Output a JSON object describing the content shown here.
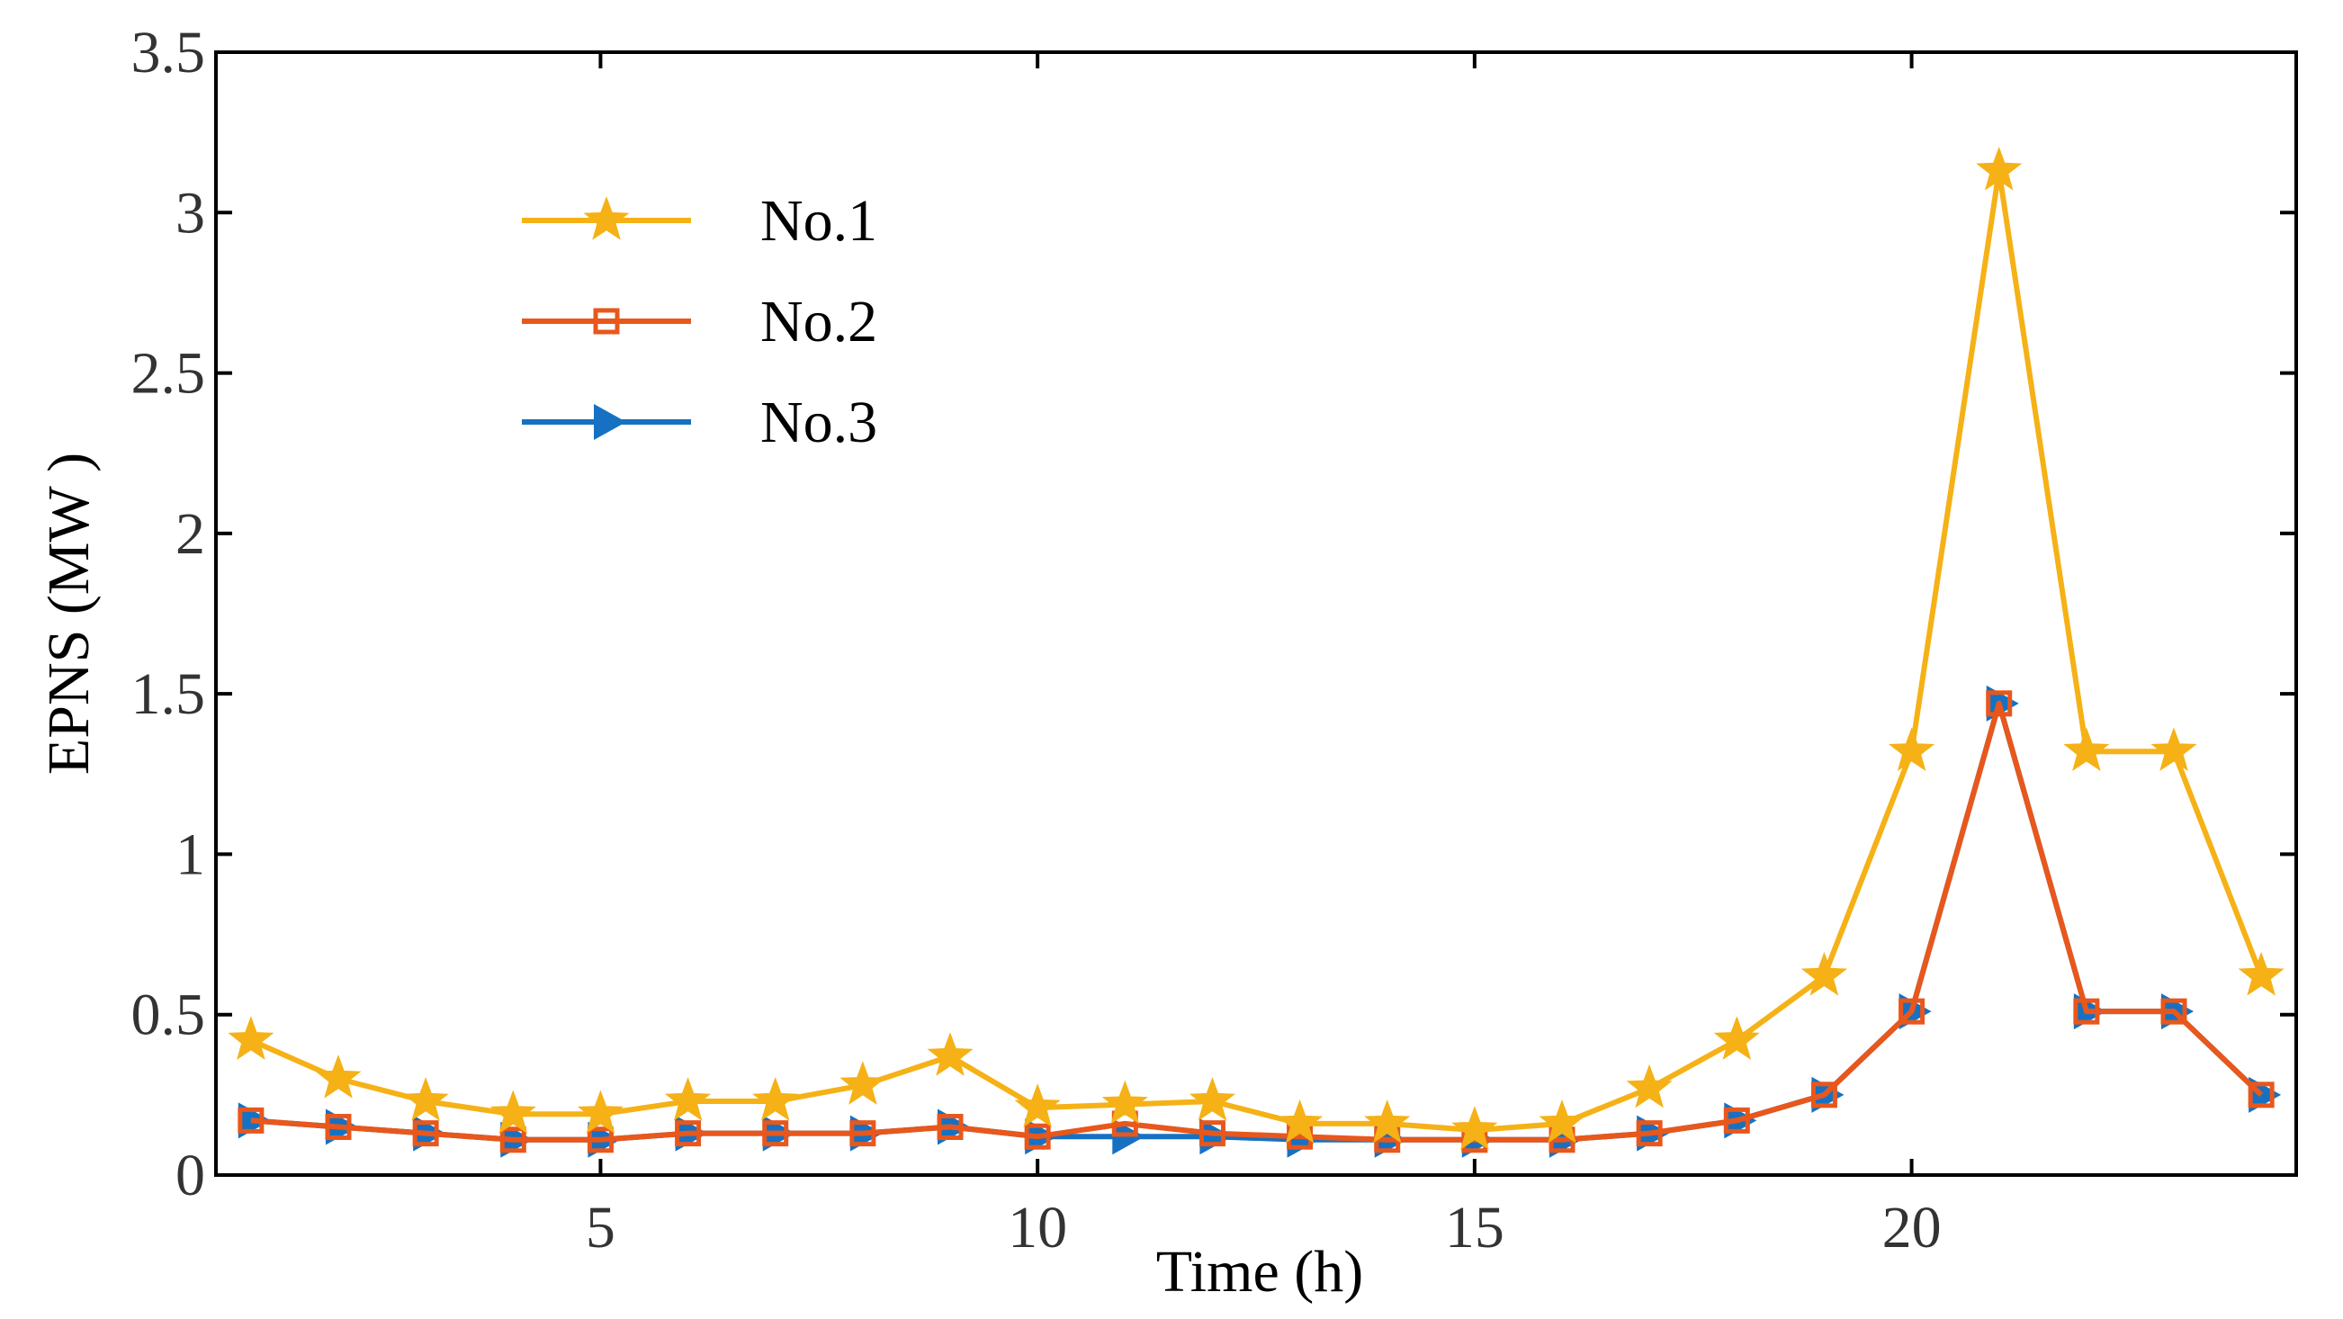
{
  "chart_data": {
    "type": "line",
    "title": "",
    "xlabel": "Time (h)",
    "ylabel": "EPNS (MW )",
    "xlim": [
      0.6,
      24.4
    ],
    "ylim": [
      0,
      3.5
    ],
    "xticks": [
      5,
      10,
      15,
      20
    ],
    "yticks": [
      0,
      0.5,
      1,
      1.5,
      2,
      2.5,
      3,
      3.5
    ],
    "x": [
      1,
      2,
      3,
      4,
      5,
      6,
      7,
      8,
      9,
      10,
      11,
      12,
      13,
      14,
      15,
      16,
      17,
      18,
      19,
      20,
      21,
      22,
      23,
      24
    ],
    "legend_position": "top-left",
    "grid": false,
    "series": [
      {
        "name": "No.1",
        "color": "#F5B116",
        "marker": "star",
        "values": [
          0.42,
          0.3,
          0.23,
          0.19,
          0.19,
          0.23,
          0.23,
          0.28,
          0.37,
          0.21,
          0.22,
          0.23,
          0.16,
          0.16,
          0.14,
          0.16,
          0.27,
          0.42,
          0.62,
          1.32,
          3.13,
          1.32,
          1.32,
          0.62
        ]
      },
      {
        "name": "No.2",
        "color": "#E8571B",
        "marker": "square",
        "values": [
          0.17,
          0.15,
          0.13,
          0.11,
          0.11,
          0.13,
          0.13,
          0.13,
          0.15,
          0.12,
          0.16,
          0.13,
          0.12,
          0.11,
          0.11,
          0.11,
          0.13,
          0.17,
          0.25,
          0.51,
          1.47,
          0.51,
          0.51,
          0.25
        ]
      },
      {
        "name": "No.3",
        "color": "#1671C2",
        "marker": "triangle-right",
        "values": [
          0.17,
          0.15,
          0.13,
          0.11,
          0.11,
          0.13,
          0.13,
          0.13,
          0.15,
          0.12,
          0.12,
          0.12,
          0.11,
          0.11,
          0.11,
          0.11,
          0.13,
          0.17,
          0.25,
          0.51,
          1.47,
          0.51,
          0.51,
          0.25
        ]
      }
    ]
  }
}
